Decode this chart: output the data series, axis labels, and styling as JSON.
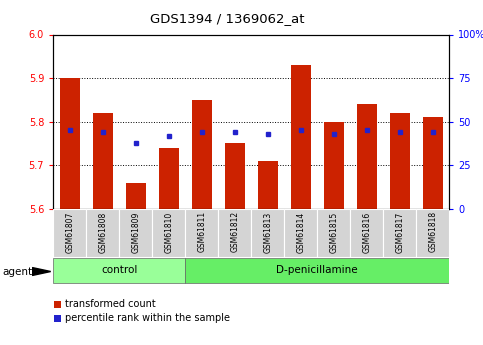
{
  "title": "GDS1394 / 1369062_at",
  "samples": [
    "GSM61807",
    "GSM61808",
    "GSM61809",
    "GSM61810",
    "GSM61811",
    "GSM61812",
    "GSM61813",
    "GSM61814",
    "GSM61815",
    "GSM61816",
    "GSM61817",
    "GSM61818"
  ],
  "transformed_counts": [
    5.9,
    5.82,
    5.66,
    5.74,
    5.85,
    5.75,
    5.71,
    5.93,
    5.8,
    5.84,
    5.82,
    5.81
  ],
  "percentile_ranks": [
    45,
    44,
    38,
    42,
    44,
    44,
    43,
    45,
    43,
    45,
    44,
    44
  ],
  "ymin": 5.6,
  "ymax": 6.0,
  "yticks": [
    5.6,
    5.7,
    5.8,
    5.9,
    6.0
  ],
  "right_ytick_vals": [
    0,
    25,
    50,
    75,
    100
  ],
  "right_ytick_labels": [
    "0",
    "25",
    "50",
    "75",
    "100%"
  ],
  "control_count": 4,
  "control_label": "control",
  "treatment_label": "D-penicillamine",
  "agent_label": "agent",
  "legend_red": "transformed count",
  "legend_blue": "percentile rank within the sample",
  "bar_color": "#cc2200",
  "dot_color": "#2222cc",
  "control_bg": "#99ff99",
  "treatment_bg": "#66ee66",
  "xlabel_bg": "#cccccc",
  "bar_width": 0.6
}
